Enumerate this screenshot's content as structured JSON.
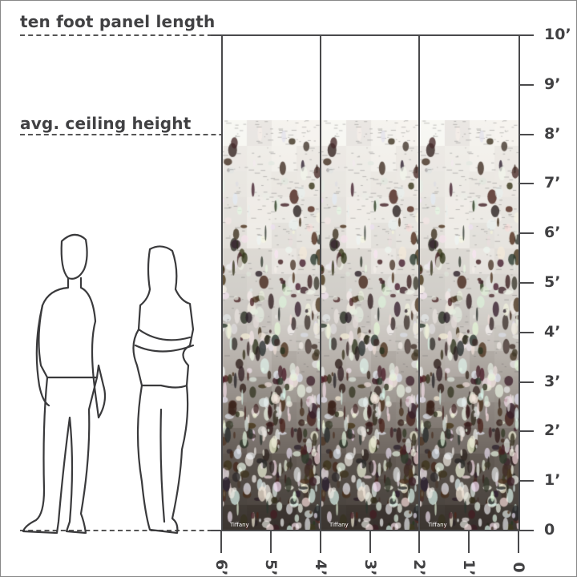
{
  "annotations": {
    "panel_length": "ten foot panel length",
    "ceiling_height": "avg. ceiling height"
  },
  "vertical_axis": {
    "unit": "feet",
    "tick_labels": [
      "0",
      "1’",
      "2’",
      "3’",
      "4’",
      "5’",
      "6’",
      "7’",
      "8’",
      "9’",
      "10’"
    ]
  },
  "horizontal_axis": {
    "unit": "feet",
    "tick_labels": [
      "0",
      "1’",
      "2’",
      "3’",
      "4’",
      "5’",
      "6’"
    ]
  },
  "panels": {
    "count": 3,
    "pattern": "birch bark",
    "watermark": "Tiffany"
  },
  "figures": [
    "man-outline",
    "woman-outline"
  ],
  "colors": {
    "line": "#4a4a4c",
    "text": "#414143"
  }
}
